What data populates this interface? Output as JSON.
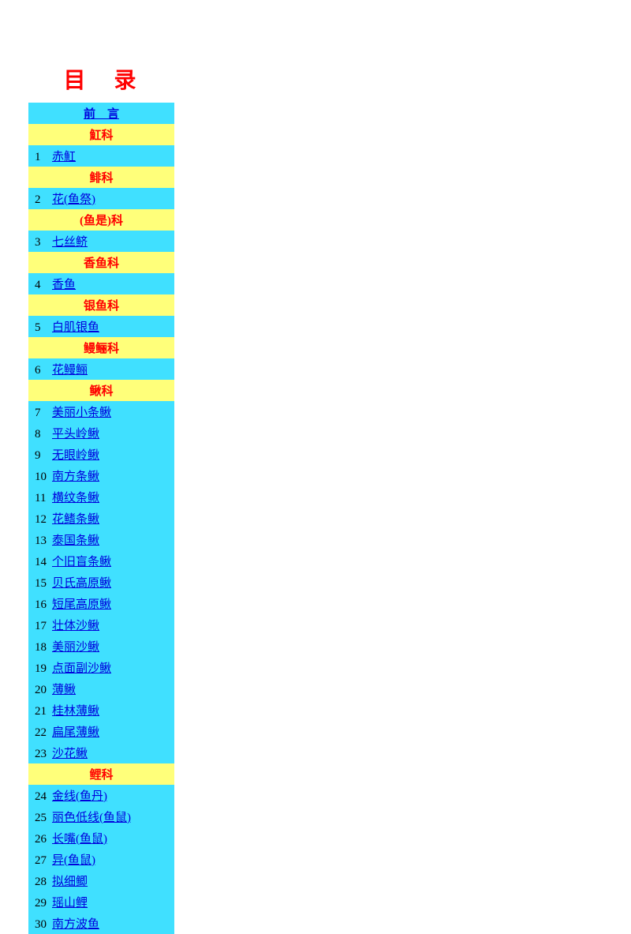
{
  "colors": {
    "title": "#ff0000",
    "preface_bg": "#40e0ff",
    "preface_link": "#0000dd",
    "header_bg": "#ffff7a",
    "header_text": "#ff0000",
    "entry_bg": "#40e0ff",
    "entry_link": "#0000dd"
  },
  "title": "目　录",
  "preface": "前　言",
  "sections": [
    {
      "header": "魟科",
      "entries": [
        {
          "num": "1",
          "label": "赤魟"
        }
      ]
    },
    {
      "header": "鲱科",
      "entries": [
        {
          "num": "2",
          "label": "花(鱼祭)"
        }
      ]
    },
    {
      "header": "(鱼是)科",
      "entries": [
        {
          "num": "3",
          "label": "七丝鲚"
        }
      ]
    },
    {
      "header": "香鱼科",
      "entries": [
        {
          "num": "4",
          "label": "香鱼"
        }
      ]
    },
    {
      "header": "银鱼科",
      "entries": [
        {
          "num": "5",
          "label": "白肌银鱼"
        }
      ]
    },
    {
      "header": "鳗鲡科",
      "entries": [
        {
          "num": "6",
          "label": "花鳗鲡"
        }
      ]
    },
    {
      "header": "鳅科",
      "entries": [
        {
          "num": "7",
          "label": "美丽小条鳅"
        },
        {
          "num": "8",
          "label": "平头岭鳅"
        },
        {
          "num": "9",
          "label": "无眼岭鳅"
        },
        {
          "num": "10",
          "label": "南方条鳅"
        },
        {
          "num": "11",
          "label": "横纹条鳅"
        },
        {
          "num": "12",
          "label": "花鳍条鳅"
        },
        {
          "num": "13",
          "label": "泰国条鳅"
        },
        {
          "num": "14",
          "label": "个旧盲条鳅"
        },
        {
          "num": "15",
          "label": "贝氏高原鳅"
        },
        {
          "num": "16",
          "label": "短尾高原鳅"
        },
        {
          "num": "17",
          "label": "壮体沙鳅"
        },
        {
          "num": "18",
          "label": "美丽沙鳅"
        },
        {
          "num": "19",
          "label": "点面副沙鳅"
        },
        {
          "num": "20",
          "label": "薄鳅"
        },
        {
          "num": "21",
          "label": "桂林薄鳅"
        },
        {
          "num": "22",
          "label": "扁尾薄鳅"
        },
        {
          "num": "23",
          "label": "沙花鳅"
        }
      ]
    },
    {
      "header": "鲤科",
      "entries": [
        {
          "num": "24",
          "label": "金线(鱼丹)"
        },
        {
          "num": "25",
          "label": "丽色低线(鱼鼠)"
        },
        {
          "num": "26",
          "label": "长嘴(鱼鼠)"
        },
        {
          "num": "27",
          "label": "异(鱼鼠)"
        },
        {
          "num": "28",
          "label": "拟细鲫"
        },
        {
          "num": "29",
          "label": "瑶山鲤"
        },
        {
          "num": "30",
          "label": "南方波鱼"
        }
      ]
    }
  ]
}
